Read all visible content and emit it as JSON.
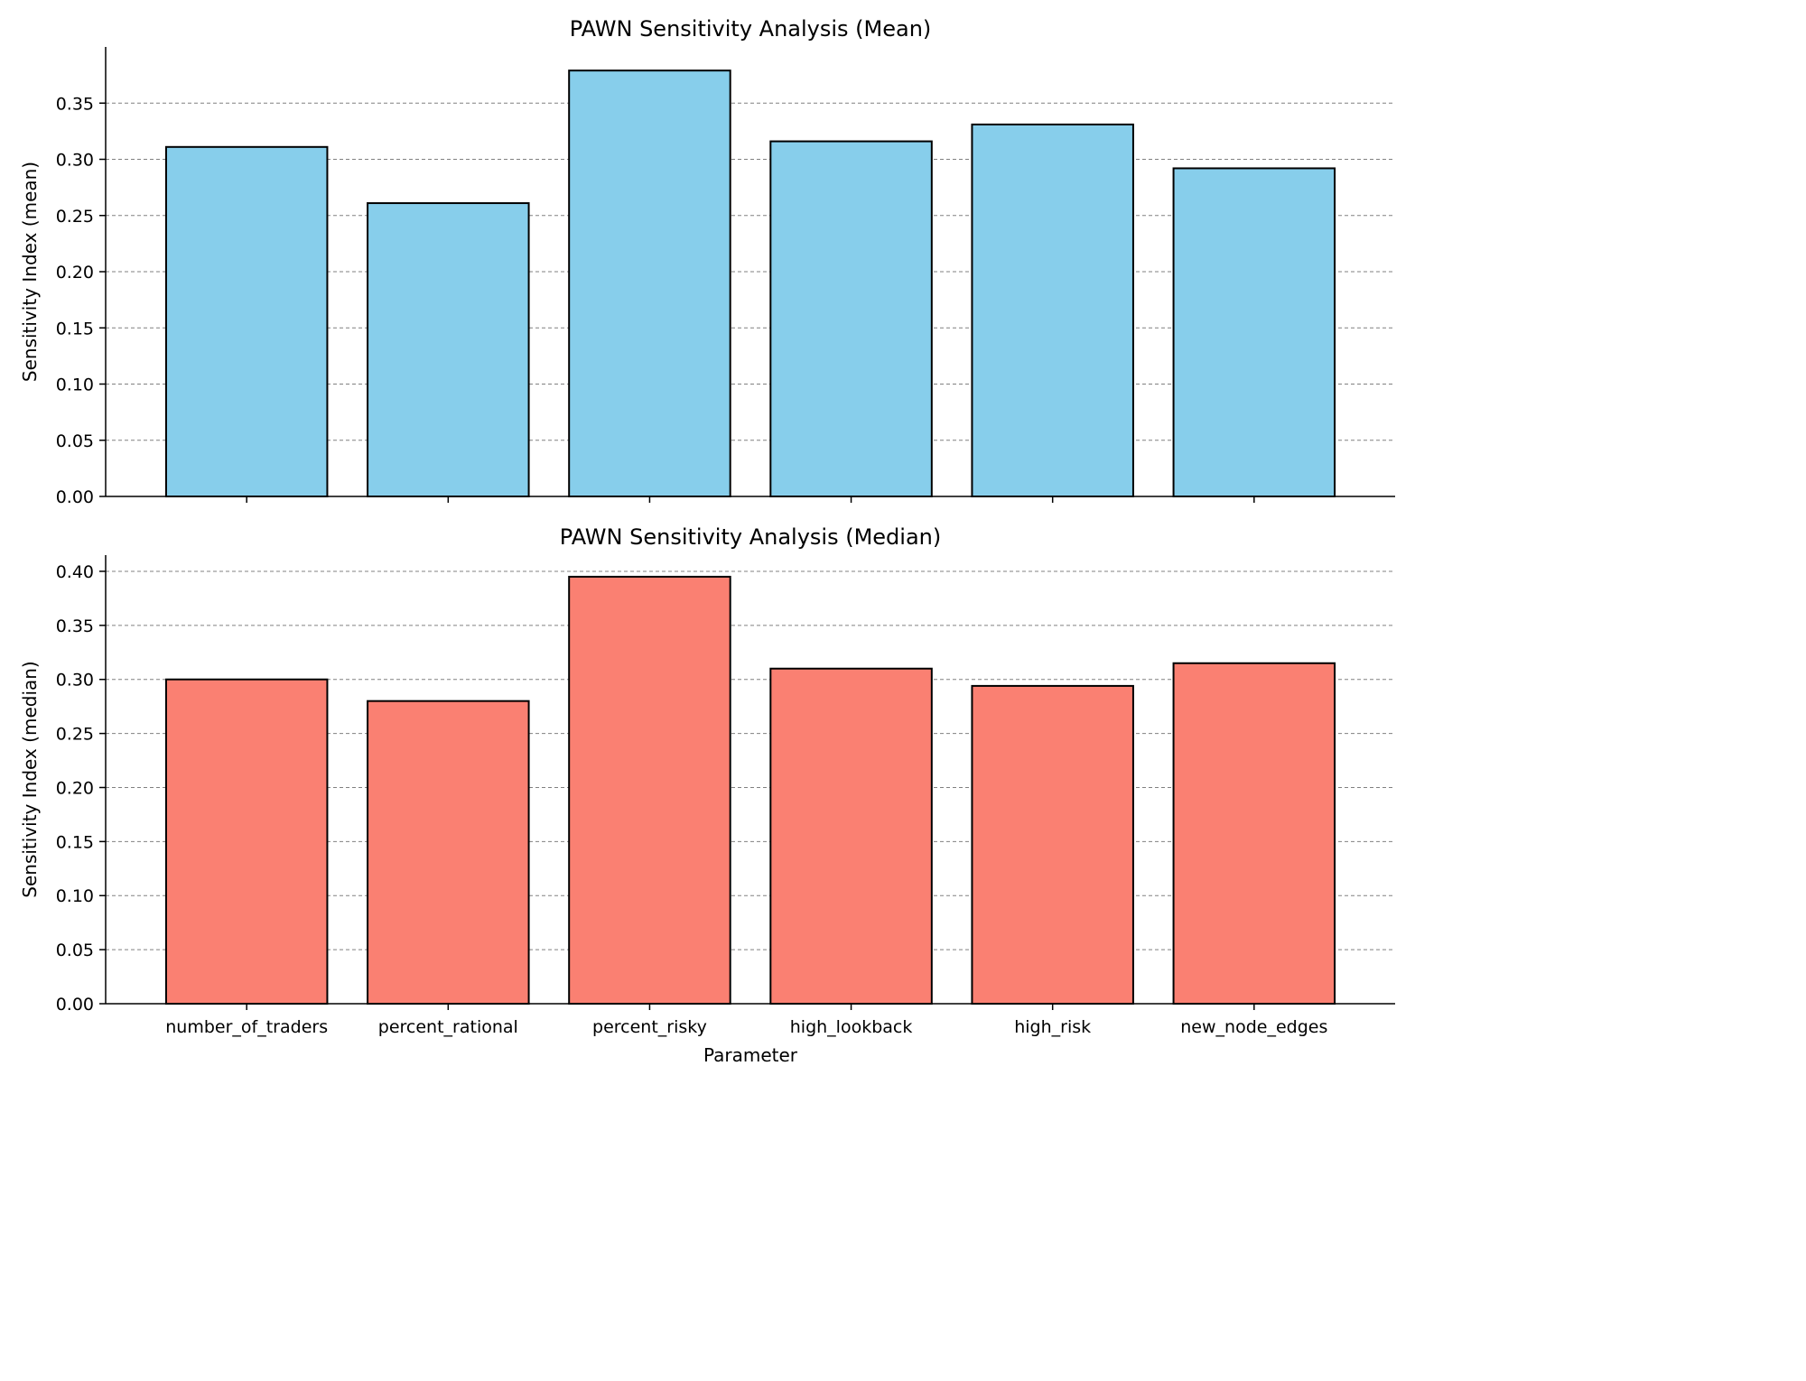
{
  "chart_data": [
    {
      "type": "bar",
      "title": "PAWN Sensitivity Analysis (Mean)",
      "xlabel": "",
      "ylabel": "Sensitivity Index (mean)",
      "categories": [
        "number_of_traders",
        "percent_rational",
        "percent_risky",
        "high_lookback",
        "high_risk",
        "new_node_edges"
      ],
      "values": [
        0.311,
        0.261,
        0.379,
        0.316,
        0.331,
        0.292
      ],
      "ylim": [
        0,
        0.4
      ],
      "yticks": [
        0.0,
        0.05,
        0.1,
        0.15,
        0.2,
        0.25,
        0.3,
        0.35
      ],
      "show_xtick_labels": false,
      "grid": "y-dashed",
      "color": "#87CEEB"
    },
    {
      "type": "bar",
      "title": "PAWN Sensitivity Analysis (Median)",
      "xlabel": "Parameter",
      "ylabel": "Sensitivity Index (median)",
      "categories": [
        "number_of_traders",
        "percent_rational",
        "percent_risky",
        "high_lookback",
        "high_risk",
        "new_node_edges"
      ],
      "values": [
        0.3,
        0.28,
        0.395,
        0.31,
        0.294,
        0.315
      ],
      "ylim": [
        0,
        0.415
      ],
      "yticks": [
        0.0,
        0.05,
        0.1,
        0.15,
        0.2,
        0.25,
        0.3,
        0.35,
        0.4
      ],
      "show_xtick_labels": true,
      "grid": "y-dashed",
      "color": "#FA8072"
    }
  ]
}
